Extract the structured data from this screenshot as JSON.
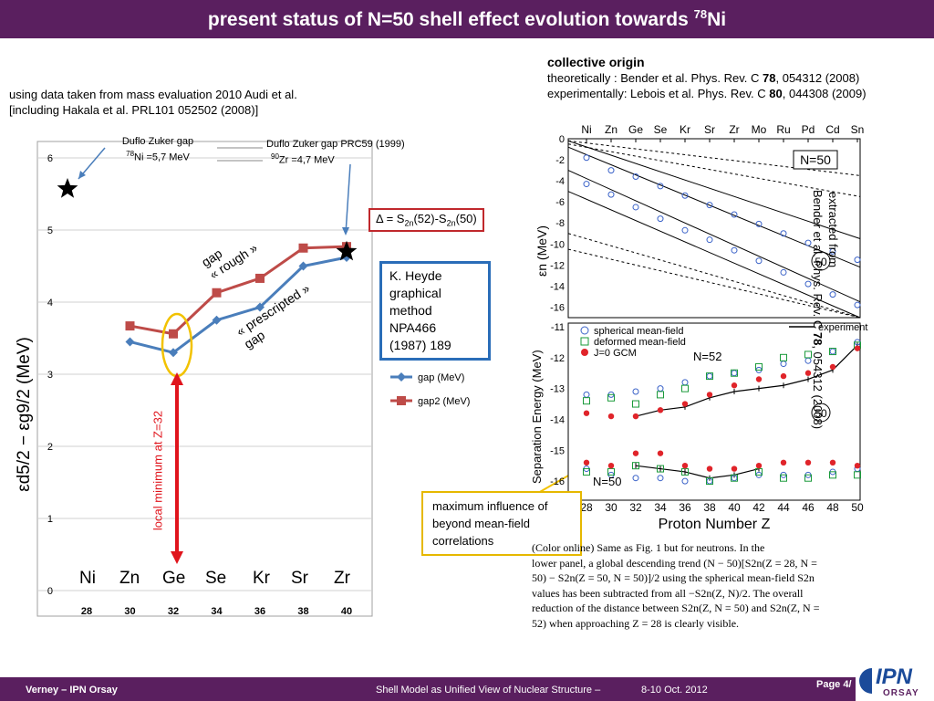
{
  "header": {
    "title": "present status of N=50 shell effect evolution towards",
    "title_sup": "78",
    "title_end": "Ni"
  },
  "left_text": {
    "line1": "using data taken from mass evaluation 2010 Audi et al.",
    "line2": "[including Hakala et al. PRL101 052502 (2008)]"
  },
  "right_text": {
    "heading": "collective origin",
    "theory_prefix": "theoretically : Bender et al. Phys. Rev. C ",
    "theory_vol": "78",
    "theory_suffix": ", 054312 (2008)",
    "exp_prefix": "experimentally: Lebois et al. Phys. Rev. C ",
    "exp_vol": "80",
    "exp_suffix": ", 044308 (2009)"
  },
  "annotations": {
    "duflo1_a": "Duflo Zuker gap",
    "duflo1_sup": "78",
    "duflo1_b": "Ni =5,7 MeV",
    "duflo2_a": "Duflo Zuker gap PRC59 (1999)",
    "duflo2_sup": "90",
    "duflo2_b": "Zr =4,7 MeV",
    "delta_a": "Δ = S",
    "delta_sub1": "2n",
    "delta_b": "(52)-S",
    "delta_sub2": "2n",
    "delta_c": "(50)",
    "heyde": [
      "K. Heyde",
      "graphical",
      "method",
      "NPA466",
      "(1987) 189"
    ],
    "rough": [
      "gap",
      "« rough »"
    ],
    "prescripted": [
      "« prescripted »",
      "gap"
    ],
    "local_min": "local minimum at Z=32",
    "beyond": [
      "maximum influence of",
      "beyond mean-field",
      "correlations"
    ],
    "extracted": [
      "extracted from",
      "Bender et al. Phys. Rev. C "
    ],
    "extracted_vol": "78",
    "extracted_suffix": ", 054312 (2008)",
    "ylabel_main": "εd5/2 − εg9/2 (MeV)"
  },
  "chart_data": [
    {
      "type": "line",
      "x": [
        30,
        32,
        34,
        36,
        38,
        40
      ],
      "x_tick_labels": [
        "28",
        "30",
        "32",
        "34",
        "36",
        "38",
        "40"
      ],
      "element_labels": [
        "Ni",
        "Zn",
        "Ge",
        "Se",
        "Kr",
        "Sr",
        "Zr"
      ],
      "ylim": [
        0,
        6
      ],
      "y_ticks": [
        "0",
        "1",
        "2",
        "3",
        "4",
        "5",
        "6"
      ],
      "series": [
        {
          "name": "gap (MeV)",
          "values": [
            3.45,
            3.3,
            3.75,
            3.93,
            4.5,
            4.62
          ],
          "color": "#4a7ebb"
        },
        {
          "name": "gap2 (MeV)",
          "values": [
            3.67,
            3.56,
            4.13,
            4.33,
            4.75,
            4.77
          ],
          "color": "#be4b48"
        }
      ],
      "stars": [
        {
          "x": 28,
          "y": 5.7
        },
        {
          "x": 40,
          "y": 4.7
        }
      ],
      "grid": true,
      "legend": "right"
    },
    {
      "type": "line",
      "x_tick_labels": [
        "Ni",
        "Zn",
        "Ge",
        "Se",
        "Kr",
        "Sr",
        "Zr",
        "Mo",
        "Ru",
        "Pd",
        "Cd",
        "Sn"
      ],
      "ylabel": "εn (MeV)",
      "ylim": [
        -17,
        0
      ],
      "y_ticks": [
        "0",
        "-2",
        "-4",
        "-6",
        "-8",
        "-10",
        "-12",
        "-14",
        "-16"
      ],
      "tag": "N=50",
      "tag2": "50",
      "circles_upper": [
        -1.8,
        -3.0,
        -3.6,
        -4.5,
        -5.4,
        -6.3,
        -7.2,
        -8.1,
        -9.0,
        -9.9,
        -10.7,
        -11.5
      ],
      "circles_lower": [
        -4.3,
        -5.3,
        -6.5,
        -7.6,
        -8.7,
        -9.6,
        -10.6,
        -11.6,
        -12.7,
        -13.8,
        -14.8,
        -15.8
      ]
    },
    {
      "type": "scatter",
      "x_tick_labels": [
        "28",
        "30",
        "32",
        "34",
        "36",
        "38",
        "40",
        "42",
        "44",
        "46",
        "48",
        "50"
      ],
      "xlabel": "Proton Number Z",
      "ylabel": "Separation Energy (MeV)",
      "ylim": [
        -16.5,
        -11
      ],
      "y_ticks": [
        "-11",
        "-12",
        "-13",
        "-14",
        "-15",
        "-16"
      ],
      "legend_entries": [
        "spherical mean-field",
        "deformed mean-field",
        "J=0 GCM",
        "experiment"
      ],
      "tag_n52": "N=52",
      "tag_n50": "N=50",
      "tag_circle": "50",
      "spherical_n52": [
        -13.2,
        -13.2,
        -13.1,
        -13.0,
        -12.8,
        -12.6,
        -12.5,
        -12.4,
        -12.2,
        -12.1,
        -11.8,
        -11.5
      ],
      "deformed_n52": [
        -13.4,
        -13.3,
        -13.5,
        -13.2,
        -13.0,
        -12.6,
        -12.5,
        -12.3,
        -12.0,
        -11.9,
        -11.8,
        -11.6
      ],
      "gcm_n52": [
        -13.8,
        -13.9,
        -13.9,
        -13.7,
        -13.5,
        -13.2,
        -12.9,
        -12.7,
        -12.6,
        -12.5,
        -12.3,
        -11.7
      ],
      "spherical_n50": [
        -15.6,
        -15.8,
        -15.9,
        -15.9,
        -16.0,
        -16.0,
        -15.9,
        -15.8,
        -15.8,
        -15.8,
        -15.7,
        -15.6
      ],
      "deformed_n50": [
        -15.7,
        -15.7,
        -15.5,
        -15.6,
        -15.7,
        -16.0,
        -15.9,
        -15.7,
        -15.9,
        -15.9,
        -15.8,
        -15.8
      ],
      "gcm_n50": [
        -15.4,
        -15.5,
        -15.1,
        -15.1,
        -15.5,
        -15.6,
        -15.6,
        -15.5,
        -15.4,
        -15.4,
        -15.4,
        -15.5
      ],
      "exp_n52": [
        null,
        null,
        -13.9,
        -13.7,
        -13.6,
        -13.3,
        -13.1,
        -13.0,
        -12.9,
        -12.7,
        -12.4,
        -11.6
      ],
      "exp_n50": [
        null,
        null,
        -15.5,
        -15.6,
        -15.7,
        -15.9,
        -15.8,
        -15.6,
        null,
        null,
        null,
        null
      ]
    }
  ],
  "caption": {
    "line1": "(Color online) Same as Fig. 1 but for neutrons. In the",
    "line2": "lower panel, a global descending trend (N − 50)[S2n(Z = 28, N =",
    "line3": "50) − S2n(Z = 50, N = 50)]/2 using the spherical mean-field S2n",
    "line4": "values has been subtracted from all −S2n(Z, N)/2. The overall",
    "line5": "reduction of the distance between S2n(Z, N = 50) and S2n(Z, N =",
    "line6": "52) when approaching Z = 28 is clearly visible."
  },
  "footer": {
    "left": "Verney – IPN Orsay",
    "center": "Shell Model as Unified View of Nuclear Structure –",
    "date": "8-10 Oct. 2012",
    "page": "Page 4/",
    "logo": "IPN",
    "logo_sub": "ORSAY"
  },
  "colors": {
    "header_bg": "#5a1f5f",
    "series1": "#4a7ebb",
    "series2": "#be4b48",
    "arrow_red": "#e0141c",
    "ellipse_yellow": "#f2c200"
  }
}
